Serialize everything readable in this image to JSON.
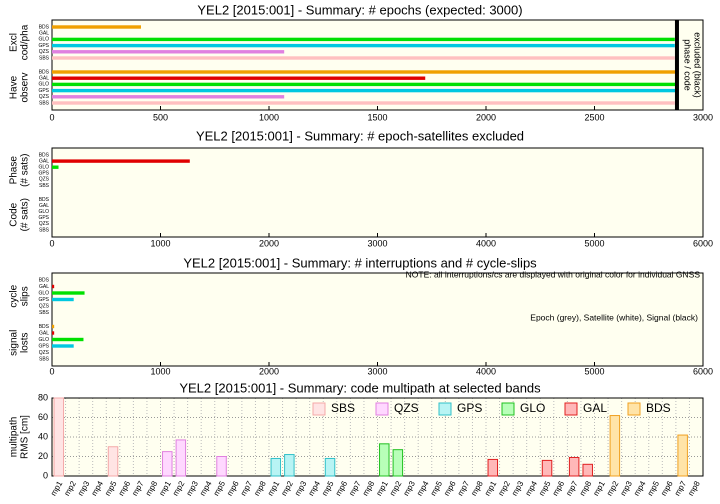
{
  "chart_data": [
    {
      "type": "hbar",
      "title": "YEL2 [2015:001] - Summary: # epochs (expected: 3000)",
      "xlim": [
        0,
        3000
      ],
      "xticks": [
        0,
        500,
        1000,
        1500,
        2000,
        2500,
        3000
      ],
      "systems": [
        "BDS",
        "GAL",
        "GLO",
        "GPS",
        "QZS",
        "SBS"
      ],
      "colors": [
        "#f0a000",
        "#e00000",
        "#00e000",
        "#00c8e0",
        "#e080e0",
        "#ffc0c0"
      ],
      "groups": [
        {
          "label_lines": [
            "Excl",
            "cod/pha"
          ],
          "values": [
            410,
            0,
            2870,
            2870,
            1070,
            2870
          ]
        },
        {
          "label_lines": [
            "Have",
            "observ"
          ],
          "values": [
            2880,
            1720,
            2880,
            2880,
            1070,
            2870
          ]
        }
      ],
      "marker": {
        "value": 2880,
        "label_lines": [
          "phase / code",
          "excluded (black)"
        ]
      }
    },
    {
      "type": "hbar",
      "title": "YEL2 [2015:001] - Summary: # epoch-satellites excluded",
      "xlim": [
        0,
        6000
      ],
      "xticks": [
        0,
        1000,
        2000,
        3000,
        4000,
        5000,
        6000
      ],
      "systems": [
        "BDS",
        "GAL",
        "GLO",
        "GPS",
        "QZS",
        "SBS"
      ],
      "colors": [
        "#f0a000",
        "#e00000",
        "#00e000",
        "#00c8e0",
        "#e080e0",
        "#ffc0c0"
      ],
      "groups": [
        {
          "label_lines": [
            "Phase",
            "(# sats)"
          ],
          "values": [
            0,
            1270,
            60,
            0,
            0,
            0
          ]
        },
        {
          "label_lines": [
            "Code",
            "(# sats)"
          ],
          "values": [
            0,
            0,
            0,
            0,
            0,
            0
          ]
        }
      ]
    },
    {
      "type": "hbar",
      "title": "YEL2 [2015:001] - Summary: # interruptions and # cycle-slips",
      "xlim": [
        0,
        6000
      ],
      "xticks": [
        0,
        1000,
        2000,
        3000,
        4000,
        5000,
        6000
      ],
      "systems": [
        "BDS",
        "GAL",
        "GLO",
        "GPS",
        "QZS",
        "SBS"
      ],
      "colors": [
        "#f0a000",
        "#e00000",
        "#00e000",
        "#00c8e0",
        "#e080e0",
        "#ffc0c0"
      ],
      "groups": [
        {
          "label_lines": [
            "cycle",
            "slips"
          ],
          "values": [
            0,
            20,
            300,
            200,
            0,
            0
          ]
        },
        {
          "label_lines": [
            "signal",
            "losts"
          ],
          "values": [
            20,
            20,
            290,
            200,
            0,
            0
          ]
        }
      ],
      "notes": [
        "NOTE: all interruptions/cs are displayed with original color for individual GNSS",
        "Epoch (grey), Satellite (white), Signal (black)"
      ]
    },
    {
      "type": "bar",
      "title": "YEL2 [2015:001] - Summary: code multipath at selected bands",
      "ylabel_lines": [
        "multipath",
        "RMS [cm]"
      ],
      "ylim": [
        0,
        80
      ],
      "yticks": [
        0,
        20,
        40,
        60,
        80
      ],
      "grid": true,
      "categories": [
        "mp1",
        "mp2",
        "mp3",
        "mp4",
        "mp5",
        "mp6",
        "mp7",
        "mp8"
      ],
      "series": [
        {
          "name": "SBS",
          "color": "#ffe4e4",
          "edge": "#f4a8a8",
          "values": [
            80,
            null,
            null,
            null,
            30,
            null,
            null,
            null
          ]
        },
        {
          "name": "QZS",
          "color": "#ffd8ff",
          "edge": "#e080e0",
          "values": [
            25,
            37,
            null,
            null,
            20,
            null,
            null,
            null
          ]
        },
        {
          "name": "GPS",
          "color": "#b8f4f4",
          "edge": "#30c0c8",
          "values": [
            18,
            22,
            null,
            null,
            18,
            null,
            null,
            null
          ]
        },
        {
          "name": "GLO",
          "color": "#b8ffb8",
          "edge": "#20c020",
          "values": [
            33,
            27,
            null,
            null,
            null,
            null,
            null,
            null
          ]
        },
        {
          "name": "GAL",
          "color": "#ffb8b8",
          "edge": "#e02020",
          "values": [
            17,
            null,
            null,
            null,
            16,
            null,
            19,
            12
          ]
        },
        {
          "name": "BDS",
          "color": "#ffe4a8",
          "edge": "#f0a020",
          "values": [
            null,
            62,
            null,
            null,
            null,
            null,
            42,
            null
          ]
        }
      ]
    }
  ]
}
